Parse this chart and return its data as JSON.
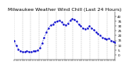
{
  "title": "Milwaukee Weather Wind Chill (Last 24 Hours)",
  "line_color": "#0000cc",
  "background_color": "#ffffff",
  "grid_color": "#888888",
  "y_values": [
    15,
    10,
    6,
    4,
    3,
    3,
    4,
    3,
    3,
    4,
    4,
    5,
    7,
    12,
    18,
    24,
    28,
    31,
    32,
    34,
    35,
    36,
    34,
    32,
    31,
    33,
    36,
    38,
    37,
    35,
    32,
    30,
    28,
    27,
    28,
    30,
    28,
    26,
    24,
    22,
    20,
    18,
    17,
    16,
    17,
    15,
    14,
    13
  ],
  "ylim": [
    -5,
    45
  ],
  "ytick_values": [
    0,
    5,
    10,
    15,
    20,
    25,
    30,
    35,
    40
  ],
  "num_vgrid": 12,
  "markersize": 1.5,
  "linewidth": 0.6,
  "title_fontsize": 4.5,
  "tick_labelsize": 3.0
}
